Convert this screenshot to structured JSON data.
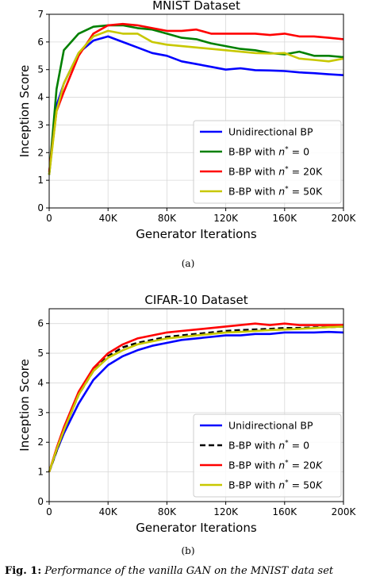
{
  "chart_data": [
    {
      "type": "line",
      "title": "MNIST Dataset",
      "xlabel": "Generator Iterations",
      "ylabel": "Inception Score",
      "xlim": [
        0,
        200000
      ],
      "ylim": [
        0,
        7
      ],
      "xticks": [
        0,
        40000,
        80000,
        120000,
        160000,
        200000
      ],
      "xtick_labels": [
        "0",
        "40K",
        "80K",
        "120K",
        "160K",
        "200K"
      ],
      "yticks": [
        0,
        1,
        2,
        3,
        4,
        5,
        6,
        7
      ],
      "ytick_labels": [
        "0",
        "1",
        "2",
        "3",
        "4",
        "5",
        "6",
        "7"
      ],
      "grid": true,
      "legend_position": "lower-right",
      "series": [
        {
          "name": "Unidirectional BP",
          "legend_main": "Unidirectional BP",
          "legend_sup": "",
          "legend_tail": "",
          "color": "#0000ff",
          "dash": "solid",
          "x": [
            0,
            5000,
            10000,
            20000,
            30000,
            40000,
            50000,
            60000,
            70000,
            80000,
            90000,
            100000,
            110000,
            120000,
            130000,
            140000,
            150000,
            160000,
            170000,
            180000,
            190000,
            200000
          ],
          "y": [
            1.2,
            3.7,
            4.5,
            5.6,
            6.05,
            6.2,
            6.0,
            5.8,
            5.6,
            5.5,
            5.3,
            5.2,
            5.1,
            5.0,
            5.05,
            4.98,
            4.97,
            4.95,
            4.9,
            4.87,
            4.83,
            4.8
          ]
        },
        {
          "name": "B-BP with n* = 0",
          "legend_main": "B-BP with ",
          "legend_sup": "*",
          "legend_tail": " = 0",
          "color": "#008000",
          "dash": "solid",
          "x": [
            0,
            5000,
            10000,
            20000,
            30000,
            40000,
            50000,
            60000,
            70000,
            80000,
            90000,
            100000,
            110000,
            120000,
            130000,
            140000,
            150000,
            160000,
            170000,
            180000,
            190000,
            200000
          ],
          "y": [
            1.2,
            4.3,
            5.7,
            6.3,
            6.55,
            6.6,
            6.6,
            6.5,
            6.45,
            6.3,
            6.15,
            6.1,
            5.95,
            5.85,
            5.75,
            5.7,
            5.6,
            5.55,
            5.65,
            5.5,
            5.5,
            5.45
          ]
        },
        {
          "name": "B-BP with n* = 20K",
          "legend_main": "B-BP with ",
          "legend_sup": "*",
          "legend_tail": " = 20K",
          "color": "#ff0000",
          "dash": "solid",
          "x": [
            0,
            5000,
            10000,
            20000,
            30000,
            40000,
            50000,
            60000,
            70000,
            80000,
            90000,
            100000,
            110000,
            120000,
            130000,
            140000,
            150000,
            160000,
            170000,
            180000,
            190000,
            200000
          ],
          "y": [
            1.3,
            3.5,
            4.2,
            5.5,
            6.3,
            6.6,
            6.65,
            6.6,
            6.5,
            6.4,
            6.4,
            6.45,
            6.3,
            6.3,
            6.3,
            6.3,
            6.25,
            6.3,
            6.2,
            6.2,
            6.15,
            6.1
          ]
        },
        {
          "name": "B-BP with n* = 50K",
          "legend_main": "B-BP with ",
          "legend_sup": "*",
          "legend_tail": " = 50K",
          "color": "#c8c800",
          "dash": "solid",
          "x": [
            0,
            5000,
            10000,
            20000,
            30000,
            40000,
            50000,
            60000,
            70000,
            80000,
            90000,
            100000,
            110000,
            120000,
            130000,
            140000,
            150000,
            160000,
            170000,
            180000,
            190000,
            200000
          ],
          "y": [
            1.2,
            3.5,
            4.5,
            5.6,
            6.2,
            6.4,
            6.3,
            6.3,
            6.0,
            5.9,
            5.85,
            5.8,
            5.75,
            5.7,
            5.65,
            5.6,
            5.58,
            5.6,
            5.4,
            5.35,
            5.3,
            5.4
          ]
        }
      ]
    },
    {
      "type": "line",
      "title": "CIFAR-10 Dataset",
      "xlabel": "Generator Iterations",
      "ylabel": "Inception Score",
      "xlim": [
        0,
        200000
      ],
      "ylim": [
        0,
        6.5
      ],
      "xticks": [
        0,
        40000,
        80000,
        120000,
        160000,
        200000
      ],
      "xtick_labels": [
        "0",
        "40K",
        "80K",
        "120K",
        "160K",
        "200K"
      ],
      "yticks": [
        0,
        1,
        2,
        3,
        4,
        5,
        6
      ],
      "ytick_labels": [
        "0",
        "1",
        "2",
        "3",
        "4",
        "5",
        "6"
      ],
      "grid": true,
      "legend_position": "lower-right",
      "series": [
        {
          "name": "Unidirectional BP",
          "legend_main": "Unidirectional BP",
          "legend_sup": "",
          "legend_tail": "",
          "color": "#0000ff",
          "dash": "solid",
          "x": [
            0,
            5000,
            10000,
            20000,
            30000,
            40000,
            50000,
            60000,
            70000,
            80000,
            90000,
            100000,
            110000,
            120000,
            130000,
            140000,
            150000,
            160000,
            170000,
            180000,
            190000,
            200000
          ],
          "y": [
            1.0,
            1.7,
            2.3,
            3.3,
            4.1,
            4.6,
            4.9,
            5.1,
            5.25,
            5.35,
            5.45,
            5.5,
            5.55,
            5.6,
            5.6,
            5.65,
            5.65,
            5.7,
            5.7,
            5.7,
            5.72,
            5.7
          ]
        },
        {
          "name": "B-BP with n* = 0",
          "legend_main": "B-BP with ",
          "legend_sup": "*",
          "legend_tail": " = 0",
          "color": "#000000",
          "dash": "dashed",
          "x": [
            0,
            5000,
            10000,
            20000,
            30000,
            40000,
            50000,
            60000,
            70000,
            80000,
            90000,
            100000,
            110000,
            120000,
            130000,
            140000,
            150000,
            160000,
            170000,
            180000,
            190000,
            200000
          ],
          "y": [
            1.0,
            1.7,
            2.4,
            3.6,
            4.4,
            4.9,
            5.2,
            5.35,
            5.45,
            5.55,
            5.6,
            5.65,
            5.7,
            5.75,
            5.78,
            5.8,
            5.82,
            5.85,
            5.85,
            5.87,
            5.88,
            5.9
          ]
        },
        {
          "name": "B-BP with n* = 20K",
          "legend_main": "B-BP with ",
          "legend_sup": "*",
          "legend_tail": " = 20",
          "legend_italic": "K",
          "color": "#ff0000",
          "dash": "solid",
          "x": [
            0,
            5000,
            10000,
            20000,
            30000,
            40000,
            50000,
            60000,
            70000,
            80000,
            90000,
            100000,
            110000,
            120000,
            130000,
            140000,
            150000,
            160000,
            170000,
            180000,
            190000,
            200000
          ],
          "y": [
            1.0,
            1.8,
            2.5,
            3.7,
            4.5,
            5.0,
            5.3,
            5.5,
            5.6,
            5.7,
            5.75,
            5.8,
            5.85,
            5.9,
            5.95,
            6.0,
            5.95,
            6.0,
            5.95,
            5.95,
            5.95,
            5.95
          ]
        },
        {
          "name": "B-BP with n* = 50K",
          "legend_main": "B-BP with ",
          "legend_sup": "*",
          "legend_tail": " = 50",
          "legend_italic": "K",
          "color": "#c8c800",
          "dash": "solid",
          "x": [
            0,
            5000,
            10000,
            20000,
            30000,
            40000,
            50000,
            60000,
            70000,
            80000,
            90000,
            100000,
            110000,
            120000,
            130000,
            140000,
            150000,
            160000,
            170000,
            180000,
            190000,
            200000
          ],
          "y": [
            1.0,
            1.75,
            2.4,
            3.6,
            4.4,
            4.85,
            5.1,
            5.3,
            5.4,
            5.5,
            5.55,
            5.6,
            5.65,
            5.7,
            5.72,
            5.75,
            5.78,
            5.8,
            5.82,
            5.85,
            5.88,
            5.9
          ]
        }
      ]
    }
  ],
  "captions": {
    "a": "(a)",
    "b": "(b)",
    "fig_label": "Fig. 1:",
    "fig_text": " Performance of the vanilla GAN on the MNIST data set"
  }
}
